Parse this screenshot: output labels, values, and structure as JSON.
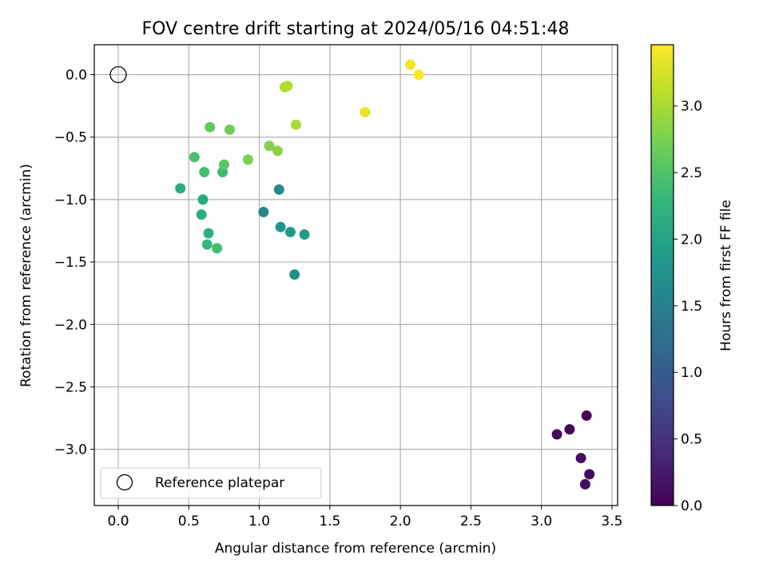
{
  "chart_data": {
    "type": "scatter",
    "title": "FOV centre drift starting at 2024/05/16 04:51:48",
    "xlabel": "Angular distance from reference (arcmin)",
    "ylabel": "Rotation from reference (arcmin)",
    "xlim": [
      -0.17,
      3.54
    ],
    "ylim": [
      -3.45,
      0.24
    ],
    "xticks": [
      0.0,
      0.5,
      1.0,
      1.5,
      2.0,
      2.5,
      3.0,
      3.5
    ],
    "xtick_labels": [
      "0.0",
      "0.5",
      "1.0",
      "1.5",
      "2.0",
      "2.5",
      "3.0",
      "3.5"
    ],
    "yticks": [
      0.0,
      -0.5,
      -1.0,
      -1.5,
      -2.0,
      -2.5,
      -3.0
    ],
    "ytick_labels": [
      "0.0",
      "−0.5",
      "−1.0",
      "−1.5",
      "−2.0",
      "−2.5",
      "−3.0"
    ],
    "grid": true,
    "colorbar": {
      "label": "Hours from first FF file",
      "colormap": "viridis",
      "range": [
        0.0,
        3.46
      ],
      "ticks": [
        0.0,
        0.5,
        1.0,
        1.5,
        2.0,
        2.5,
        3.0
      ],
      "tick_labels": [
        "0.0",
        "0.5",
        "1.0",
        "1.5",
        "2.0",
        "2.5",
        "3.0"
      ]
    },
    "legend": {
      "placement": "lower-left",
      "entries": [
        {
          "label": "Reference platepar",
          "marker": "open-circle",
          "color": "#000000"
        }
      ]
    },
    "reference_point": {
      "x": 0.0,
      "y": 0.0
    },
    "series": [
      {
        "points": [
          {
            "x": 3.32,
            "y": -2.73,
            "t": 0.0
          },
          {
            "x": 3.2,
            "y": -2.84,
            "t": 0.05
          },
          {
            "x": 3.11,
            "y": -2.88,
            "t": 0.08
          },
          {
            "x": 3.28,
            "y": -3.07,
            "t": 0.1
          },
          {
            "x": 3.34,
            "y": -3.2,
            "t": 0.1
          },
          {
            "x": 3.31,
            "y": -3.28,
            "t": 0.12
          },
          {
            "x": 1.03,
            "y": -1.1,
            "t": 1.6
          },
          {
            "x": 1.14,
            "y": -0.92,
            "t": 1.65
          },
          {
            "x": 1.25,
            "y": -1.6,
            "t": 1.75
          },
          {
            "x": 1.15,
            "y": -1.22,
            "t": 1.8
          },
          {
            "x": 1.22,
            "y": -1.26,
            "t": 1.85
          },
          {
            "x": 1.32,
            "y": -1.28,
            "t": 1.9
          },
          {
            "x": 0.44,
            "y": -0.91,
            "t": 2.1
          },
          {
            "x": 0.6,
            "y": -1.0,
            "t": 2.1
          },
          {
            "x": 0.59,
            "y": -1.12,
            "t": 2.15
          },
          {
            "x": 0.64,
            "y": -1.27,
            "t": 2.2
          },
          {
            "x": 0.63,
            "y": -1.36,
            "t": 2.3
          },
          {
            "x": 0.7,
            "y": -1.39,
            "t": 2.4
          },
          {
            "x": 0.61,
            "y": -0.78,
            "t": 2.4
          },
          {
            "x": 0.54,
            "y": -0.66,
            "t": 2.45
          },
          {
            "x": 0.74,
            "y": -0.78,
            "t": 2.35
          },
          {
            "x": 0.75,
            "y": -0.72,
            "t": 2.55
          },
          {
            "x": 0.65,
            "y": -0.42,
            "t": 2.6
          },
          {
            "x": 0.79,
            "y": -0.44,
            "t": 2.7
          },
          {
            "x": 0.92,
            "y": -0.68,
            "t": 2.75
          },
          {
            "x": 1.07,
            "y": -0.57,
            "t": 2.8
          },
          {
            "x": 1.13,
            "y": -0.61,
            "t": 2.85
          },
          {
            "x": 1.26,
            "y": -0.4,
            "t": 3.0
          },
          {
            "x": 1.18,
            "y": -0.1,
            "t": 3.05
          },
          {
            "x": 1.2,
            "y": -0.09,
            "t": 3.05
          },
          {
            "x": 1.75,
            "y": -0.3,
            "t": 3.35
          },
          {
            "x": 2.07,
            "y": 0.08,
            "t": 3.4
          },
          {
            "x": 2.13,
            "y": 0.0,
            "t": 3.45
          }
        ]
      }
    ]
  }
}
